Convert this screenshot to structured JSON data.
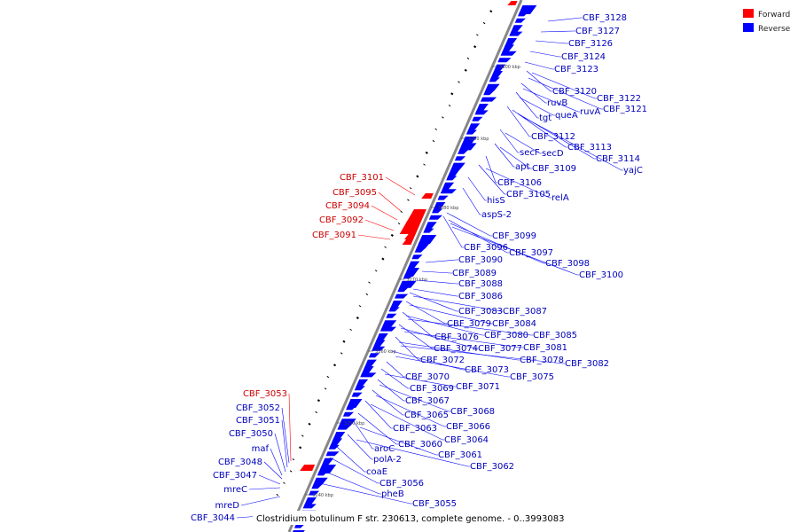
{
  "colors": {
    "forward": "#ff0000",
    "reverse": "#0000ff",
    "backbone": "#888888",
    "label_forward": "#cc0000",
    "label_reverse": "#0000bb"
  },
  "legend": {
    "forward": "Forward",
    "reverse": "Reverse"
  },
  "caption": "Clostridium botulinum F str. 230613, complete genome. - 0..3993083",
  "ticks": [
    "3300 kbp",
    "3290 kbp",
    "3280 kbp",
    "3270 kbp",
    "3260 kbp",
    "3250 kbp",
    "3240 kbp"
  ],
  "forward_labels": [
    "CBF_3101",
    "CBF_3095",
    "CBF_3094",
    "CBF_3092",
    "CBF_3091",
    "CBF_3053"
  ],
  "reverse_labels_left": [
    "CBF_3052",
    "CBF_3051",
    "CBF_3050",
    "maf",
    "CBF_3048",
    "CBF_3047",
    "mreC",
    "mreD",
    "CBF_3044"
  ],
  "reverse_labels_right": [
    "CBF_3128",
    "CBF_3127",
    "CBF_3126",
    "CBF_3124",
    "CBF_3123",
    "CBF_3122",
    "CBF_3120",
    "CBF_3121",
    "ruvB",
    "ruvA",
    "tgt",
    "queA",
    "CBF_3112",
    "CBF_3113",
    "CBF_3114",
    "yajC",
    "secF",
    "secD",
    "apt",
    "CBF_3109",
    "CBF_3106",
    "CBF_3105",
    "relA",
    "hisS",
    "aspS-2",
    "CBF_3099",
    "CBF_3096",
    "CBF_3097",
    "CBF_3098",
    "CBF_3100",
    "CBF_3090",
    "CBF_3089",
    "CBF_3088",
    "CBF_3086",
    "CBF_3083",
    "CBF_3087",
    "CBF_3079",
    "CBF_3084",
    "CBF_3076",
    "CBF_3080",
    "CBF_3085",
    "CBF_3074",
    "CBF_3077",
    "CBF_3081",
    "CBF_3072",
    "CBF_3078",
    "CBF_3082",
    "CBF_3073",
    "CBF_3075",
    "CBF_3070",
    "CBF_3069",
    "CBF_3071",
    "CBF_3067",
    "CBF_3068",
    "CBF_3065",
    "CBF_3066",
    "CBF_3063",
    "CBF_3064",
    "CBF_3060",
    "aroC",
    "CBF_3061",
    "polA-2",
    "CBF_3062",
    "coaE",
    "CBF_3056",
    "pheB",
    "CBF_3055"
  ]
}
